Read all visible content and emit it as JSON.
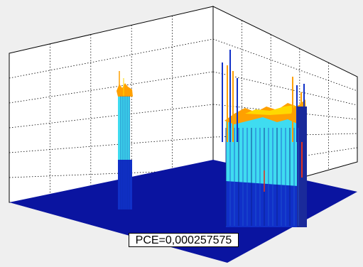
{
  "chart_data": {
    "type": "surface3d",
    "title": "",
    "xlabel": "",
    "ylabel": "",
    "zlabel": "",
    "grid": true,
    "grid_style": "dotted",
    "colormap": "jet",
    "annotation": "PCE=0,000257575",
    "floor_color": "#0a14a0",
    "peaks": [
      {
        "name": "narrow-peak",
        "description_colors": [
          "#3fdcf0",
          "#1030c8",
          "#ffa500"
        ]
      },
      {
        "name": "wide-peak",
        "description_colors": [
          "#3fdcf0",
          "#1030c8",
          "#ff8a00",
          "#e04020",
          "#ffd000"
        ]
      }
    ]
  },
  "colors": {
    "background": "#efefef",
    "axes_box": "#ffffff",
    "grid": "#000000",
    "floor": "#0a14a0",
    "cyan": "#3fdcf0",
    "blue": "#1030c8",
    "orange": "#ffa000",
    "red": "#e03020",
    "yellow": "#ffd800"
  }
}
